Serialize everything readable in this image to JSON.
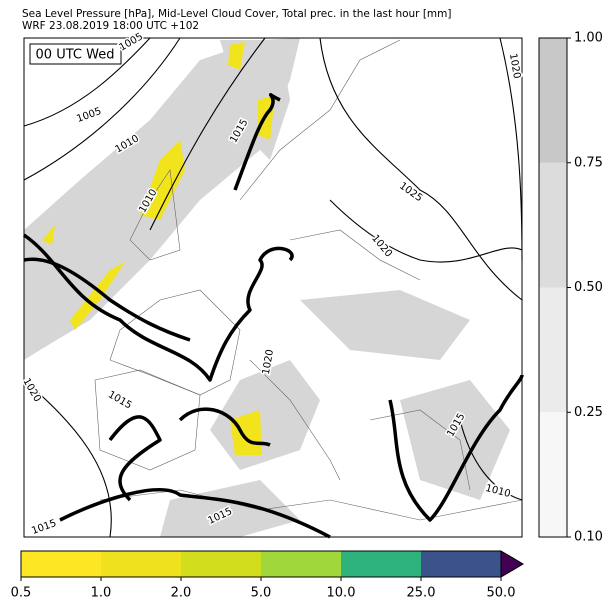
{
  "header": {
    "title": "Sea Level Pressure [hPa], Mid-Level Cloud Cover, Total prec. in the last hour [mm]",
    "subtitle": "WRF 23.08.2019 18:00 UTC +102"
  },
  "map": {
    "time_label": "00 UTC Wed",
    "isobar_labels": [
      "1005",
      "1005",
      "1010",
      "1015",
      "1010",
      "1025",
      "1020",
      "1020",
      "1020",
      "1020",
      "1015",
      "1015",
      "1015",
      "1015",
      "1010"
    ]
  },
  "cloud_colorbar": {
    "ticks": [
      {
        "value": 0.1,
        "label": "0.10"
      },
      {
        "value": 0.25,
        "label": "0.25"
      },
      {
        "value": 0.5,
        "label": "0.50"
      },
      {
        "value": 0.75,
        "label": "0.75"
      },
      {
        "value": 1,
        "label": "1.00"
      }
    ],
    "colors": [
      "#f7f7f7",
      "#ebebeb",
      "#dcdcdc",
      "#c8c8c8"
    ]
  },
  "precip_colorbar": {
    "ticks": [
      0.5,
      {
        "value": 1,
        "label": "1.0"
      },
      {
        "value": 2,
        "label": "2.0"
      },
      {
        "value": 5,
        "label": "5.0"
      },
      {
        "value": 10,
        "label": "10.0"
      },
      {
        "value": 25,
        "label": "25.0"
      },
      {
        "value": 50,
        "label": "50.0"
      }
    ],
    "colors": [
      "#fde725",
      "#f0e11e",
      "#d2dd1c",
      "#a0d83b",
      "#2eb37c",
      "#3b528b"
    ],
    "over_color": "#440154"
  }
}
